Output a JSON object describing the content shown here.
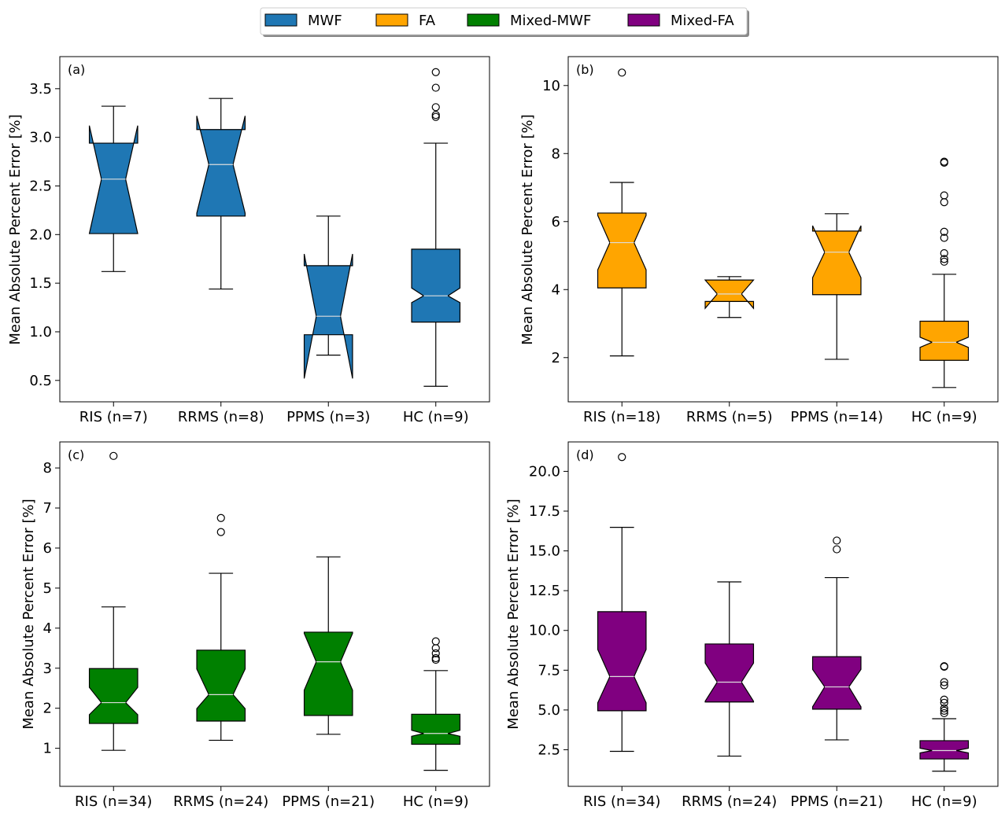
{
  "legend": {
    "placement": "top-center",
    "entries": [
      {
        "label": "MWF",
        "color": "#1f77b4"
      },
      {
        "label": "FA",
        "color": "#ffa500"
      },
      {
        "label": "Mixed-MWF",
        "color": "#008000"
      },
      {
        "label": "Mixed-FA",
        "color": "#800080"
      }
    ]
  },
  "chart_data": [
    {
      "type": "box",
      "panel_label": "(a)",
      "ylabel": "Mean Absolute Percent Error [%]",
      "color": "#1f77b4",
      "notched": true,
      "ylim": [
        0.28,
        3.83
      ],
      "yticks": [
        0.5,
        1.0,
        1.5,
        2.0,
        2.5,
        3.0,
        3.5
      ],
      "categories": [
        "RIS (n=7)",
        "RRMS (n=8)",
        "PPMS (n=3)",
        "HC (n=9)"
      ],
      "boxes": [
        {
          "whislo": 1.62,
          "q1": 2.01,
          "med": 2.57,
          "q3": 2.94,
          "whishi": 3.32,
          "notch_lo": 2.01,
          "notch_hi": 3.12,
          "fliers": []
        },
        {
          "whislo": 1.44,
          "q1": 2.19,
          "med": 2.72,
          "q3": 3.08,
          "whishi": 3.4,
          "notch_lo": 2.22,
          "notch_hi": 3.22,
          "fliers": []
        },
        {
          "whislo": 0.76,
          "q1": 0.97,
          "med": 1.16,
          "q3": 1.68,
          "whishi": 2.19,
          "notch_lo": 0.52,
          "notch_hi": 1.8,
          "fliers": []
        },
        {
          "whislo": 0.44,
          "q1": 1.1,
          "med": 1.37,
          "q3": 1.85,
          "whishi": 2.94,
          "notch_lo": 1.3,
          "notch_hi": 1.45,
          "fliers": [
            3.21,
            3.23,
            3.31,
            3.51,
            3.67
          ]
        }
      ]
    },
    {
      "type": "box",
      "panel_label": "(b)",
      "ylabel": "Mean Absolute Percent Error [%]",
      "color": "#ffa500",
      "notched": true,
      "ylim": [
        0.7,
        10.85
      ],
      "yticks": [
        2,
        4,
        6,
        8,
        10
      ],
      "categories": [
        "RIS (n=18)",
        "RRMS (n=5)",
        "PPMS (n=14)",
        "HC (n=9)"
      ],
      "boxes": [
        {
          "whislo": 2.05,
          "q1": 4.05,
          "med": 5.38,
          "q3": 6.25,
          "whishi": 7.15,
          "notch_lo": 4.58,
          "notch_hi": 6.18,
          "fliers": [
            10.38
          ]
        },
        {
          "whislo": 3.18,
          "q1": 3.65,
          "med": 3.87,
          "q3": 4.28,
          "whishi": 4.38,
          "notch_lo": 3.45,
          "notch_hi": 4.28,
          "fliers": []
        },
        {
          "whislo": 1.95,
          "q1": 3.85,
          "med": 5.1,
          "q3": 5.72,
          "whishi": 6.23,
          "notch_lo": 4.35,
          "notch_hi": 5.88,
          "fliers": []
        },
        {
          "whislo": 1.12,
          "q1": 1.92,
          "med": 2.45,
          "q3": 3.07,
          "whishi": 4.45,
          "notch_lo": 2.3,
          "notch_hi": 2.6,
          "fliers": [
            4.82,
            4.9,
            5.07,
            5.52,
            5.7,
            6.57,
            6.77,
            7.73,
            7.76
          ]
        }
      ]
    },
    {
      "type": "box",
      "panel_label": "(c)",
      "ylabel": "Mean Absolute Percent Error [%]",
      "color": "#008000",
      "notched": true,
      "ylim": [
        0.05,
        8.65
      ],
      "yticks": [
        1,
        2,
        3,
        4,
        5,
        6,
        7,
        8
      ],
      "categories": [
        "RIS (n=34)",
        "RRMS (n=24)",
        "PPMS (n=21)",
        "HC (n=9)"
      ],
      "boxes": [
        {
          "whislo": 0.95,
          "q1": 1.62,
          "med": 2.14,
          "q3": 2.99,
          "whishi": 4.53,
          "notch_lo": 1.84,
          "notch_hi": 2.52,
          "fliers": [
            8.3
          ]
        },
        {
          "whislo": 1.2,
          "q1": 1.68,
          "med": 2.34,
          "q3": 3.45,
          "whishi": 5.37,
          "notch_lo": 1.99,
          "notch_hi": 2.98,
          "fliers": [
            6.4,
            6.75
          ]
        },
        {
          "whislo": 1.35,
          "q1": 1.82,
          "med": 3.16,
          "q3": 3.9,
          "whishi": 5.78,
          "notch_lo": 2.45,
          "notch_hi": 3.87,
          "fliers": []
        },
        {
          "whislo": 0.45,
          "q1": 1.1,
          "med": 1.37,
          "q3": 1.85,
          "whishi": 2.94,
          "notch_lo": 1.3,
          "notch_hi": 1.45,
          "fliers": [
            3.21,
            3.25,
            3.37,
            3.5,
            3.67
          ]
        }
      ]
    },
    {
      "type": "box",
      "panel_label": "(d)",
      "ylabel": "Mean Absolute Percent Error [%]",
      "color": "#800080",
      "notched": true,
      "ylim": [
        0.2,
        21.85
      ],
      "yticks": [
        2.5,
        5.0,
        7.5,
        10.0,
        12.5,
        15.0,
        17.5,
        20.0
      ],
      "categories": [
        "RIS (n=34)",
        "RRMS (n=24)",
        "PPMS (n=21)",
        "HC (n=9)"
      ],
      "boxes": [
        {
          "whislo": 2.4,
          "q1": 4.95,
          "med": 7.1,
          "q3": 11.18,
          "whishi": 16.48,
          "notch_lo": 5.45,
          "notch_hi": 8.8,
          "fliers": [
            20.9
          ]
        },
        {
          "whislo": 2.1,
          "q1": 5.5,
          "med": 6.75,
          "q3": 9.15,
          "whishi": 13.05,
          "notch_lo": 5.55,
          "notch_hi": 7.95,
          "fliers": []
        },
        {
          "whislo": 3.12,
          "q1": 5.05,
          "med": 6.45,
          "q3": 8.35,
          "whishi": 13.32,
          "notch_lo": 5.2,
          "notch_hi": 7.55,
          "fliers": [
            15.1,
            15.65
          ]
        },
        {
          "whislo": 1.15,
          "q1": 1.92,
          "med": 2.45,
          "q3": 3.07,
          "whishi": 4.45,
          "notch_lo": 2.3,
          "notch_hi": 2.6,
          "fliers": [
            4.8,
            4.95,
            5.1,
            5.45,
            5.65,
            6.55,
            6.75,
            7.72,
            7.75
          ]
        }
      ]
    }
  ]
}
